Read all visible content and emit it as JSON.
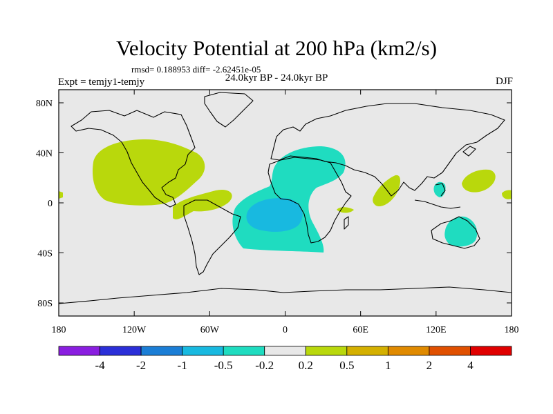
{
  "header": {
    "title": "Velocity Potential at 200 hPa (km2/s)",
    "stats": "rmsd= 0.188953 diff= -2.62451e-05",
    "periods": "24.0kyr BP - 24.0kyr BP",
    "experiment": "Expt = temjy1-temjy",
    "season": "DJF"
  },
  "map": {
    "ocean_color": "#e8e8e8",
    "lat_ticks": [
      {
        "value": 80,
        "label": "80N"
      },
      {
        "value": 40,
        "label": "40N"
      },
      {
        "value": 0,
        "label": "0"
      },
      {
        "value": -40,
        "label": "40S"
      },
      {
        "value": -80,
        "label": "80S"
      }
    ],
    "lon_ticks": [
      {
        "value": -180,
        "label": "180"
      },
      {
        "value": -120,
        "label": "120W"
      },
      {
        "value": -60,
        "label": "60W"
      },
      {
        "value": 0,
        "label": "0"
      },
      {
        "value": 60,
        "label": "60E"
      },
      {
        "value": 120,
        "label": "120E"
      },
      {
        "value": 180,
        "label": "180"
      }
    ]
  },
  "colorbar": {
    "colors": [
      "#8a1ee0",
      "#2b2fd8",
      "#1b7ed6",
      "#18b9e0",
      "#1fdcc0",
      "#e8e8e8",
      "#b9d80c",
      "#d4b000",
      "#e08a00",
      "#e05000",
      "#e00000"
    ],
    "labels": [
      "-4",
      "-2",
      "-1",
      "-0.5",
      "-0.2",
      "0.2",
      "0.5",
      "1",
      "2",
      "4"
    ]
  }
}
